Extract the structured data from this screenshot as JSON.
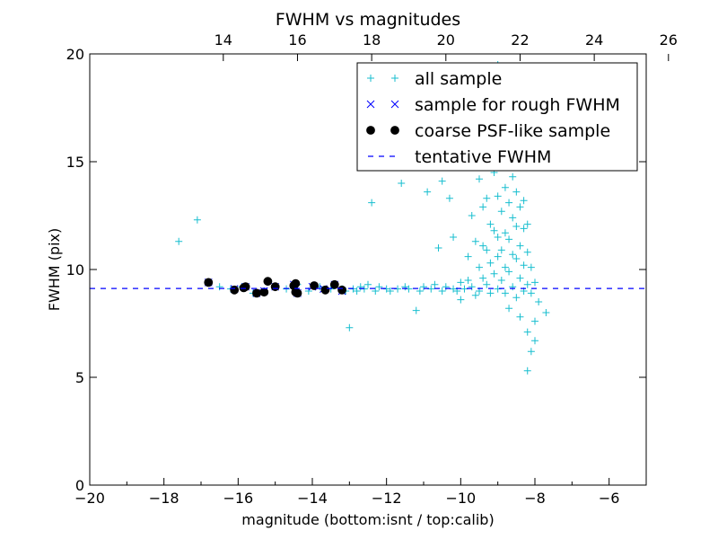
{
  "chart_data": {
    "type": "scatter",
    "title": "FWHM vs magnitudes",
    "xlabel": "magnitude (bottom:isnt / top:calib)",
    "ylabel": "FWHM (pix)",
    "xlim": [
      -20,
      -5
    ],
    "ylim": [
      0,
      20
    ],
    "x_ticks": [
      -20,
      -18,
      -16,
      -14,
      -12,
      -10,
      -8,
      -6
    ],
    "x_tick_labels": [
      "−20",
      "−18",
      "−16",
      "−14",
      "−12",
      "−10",
      "−8",
      "−6"
    ],
    "y_ticks": [
      0,
      5,
      10,
      15,
      20
    ],
    "y_tick_labels": [
      "0",
      "5",
      "10",
      "15",
      "20"
    ],
    "top_axis": {
      "offset": 30.4,
      "ticks": [
        14,
        16,
        18,
        20,
        22,
        24,
        26
      ],
      "tick_labels": [
        "14",
        "16",
        "18",
        "20",
        "22",
        "24",
        "26"
      ]
    },
    "grid": false,
    "legend_position": "top-right",
    "series": [
      {
        "name": "all sample",
        "marker": "plus",
        "color": "#17becf",
        "points": [
          [
            -17.6,
            11.3
          ],
          [
            -17.1,
            12.3
          ],
          [
            -16.8,
            9.4
          ],
          [
            -16.5,
            9.2
          ],
          [
            -16.2,
            9.1
          ],
          [
            -15.9,
            9.2
          ],
          [
            -15.6,
            8.9
          ],
          [
            -15.3,
            9.0
          ],
          [
            -15.0,
            9.2
          ],
          [
            -14.7,
            9.1
          ],
          [
            -14.4,
            9.3
          ],
          [
            -14.1,
            9.0
          ],
          [
            -13.8,
            9.2
          ],
          [
            -13.5,
            9.1
          ],
          [
            -13.2,
            9.1
          ],
          [
            -13.1,
            9.0
          ],
          [
            -13.0,
            7.3
          ],
          [
            -12.9,
            9.1
          ],
          [
            -12.8,
            9.0
          ],
          [
            -12.7,
            9.2
          ],
          [
            -12.6,
            9.1
          ],
          [
            -12.5,
            9.3
          ],
          [
            -12.4,
            13.1
          ],
          [
            -12.3,
            9.0
          ],
          [
            -12.2,
            9.2
          ],
          [
            -12.0,
            9.1
          ],
          [
            -11.9,
            9.0
          ],
          [
            -11.7,
            9.1
          ],
          [
            -11.6,
            14.0
          ],
          [
            -11.5,
            9.2
          ],
          [
            -11.4,
            9.1
          ],
          [
            -11.2,
            8.1
          ],
          [
            -11.1,
            9.0
          ],
          [
            -11.0,
            9.2
          ],
          [
            -10.9,
            13.6
          ],
          [
            -10.8,
            9.1
          ],
          [
            -10.7,
            9.3
          ],
          [
            -10.6,
            11.0
          ],
          [
            -10.5,
            14.1
          ],
          [
            -10.5,
            9.0
          ],
          [
            -10.4,
            9.2
          ],
          [
            -10.3,
            13.3
          ],
          [
            -10.2,
            11.5
          ],
          [
            -10.2,
            9.1
          ],
          [
            -10.1,
            9.0
          ],
          [
            -10.0,
            9.4
          ],
          [
            -10.0,
            8.6
          ],
          [
            -9.9,
            9.1
          ],
          [
            -9.9,
            16.2
          ],
          [
            -9.8,
            10.6
          ],
          [
            -9.8,
            9.5
          ],
          [
            -9.7,
            12.5
          ],
          [
            -9.7,
            9.2
          ],
          [
            -9.6,
            11.3
          ],
          [
            -9.6,
            8.8
          ],
          [
            -9.5,
            14.2
          ],
          [
            -9.5,
            10.1
          ],
          [
            -9.5,
            9.0
          ],
          [
            -9.4,
            12.9
          ],
          [
            -9.4,
            11.1
          ],
          [
            -9.4,
            9.6
          ],
          [
            -9.3,
            15.4
          ],
          [
            -9.3,
            13.3
          ],
          [
            -9.3,
            10.9
          ],
          [
            -9.3,
            9.3
          ],
          [
            -9.2,
            17.0
          ],
          [
            -9.2,
            12.1
          ],
          [
            -9.2,
            10.3
          ],
          [
            -9.2,
            8.9
          ],
          [
            -9.1,
            14.5
          ],
          [
            -9.1,
            11.8
          ],
          [
            -9.1,
            9.8
          ],
          [
            -9.0,
            19.5
          ],
          [
            -9.0,
            13.4
          ],
          [
            -9.0,
            11.5
          ],
          [
            -9.0,
            10.6
          ],
          [
            -9.0,
            9.1
          ],
          [
            -8.9,
            16.5
          ],
          [
            -8.9,
            14.9
          ],
          [
            -8.9,
            12.7
          ],
          [
            -8.9,
            10.9
          ],
          [
            -8.9,
            9.5
          ],
          [
            -8.8,
            18.2
          ],
          [
            -8.8,
            13.8
          ],
          [
            -8.8,
            11.7
          ],
          [
            -8.8,
            10.1
          ],
          [
            -8.8,
            8.9
          ],
          [
            -8.7,
            15.6
          ],
          [
            -8.7,
            13.1
          ],
          [
            -8.7,
            11.4
          ],
          [
            -8.7,
            9.9
          ],
          [
            -8.7,
            8.2
          ],
          [
            -8.6,
            17.4
          ],
          [
            -8.6,
            14.3
          ],
          [
            -8.6,
            12.4
          ],
          [
            -8.6,
            10.7
          ],
          [
            -8.6,
            9.2
          ],
          [
            -8.5,
            16.1
          ],
          [
            -8.5,
            13.6
          ],
          [
            -8.5,
            12.0
          ],
          [
            -8.5,
            10.5
          ],
          [
            -8.5,
            8.7
          ],
          [
            -8.4,
            14.8
          ],
          [
            -8.4,
            12.9
          ],
          [
            -8.4,
            11.1
          ],
          [
            -8.4,
            9.6
          ],
          [
            -8.4,
            7.8
          ],
          [
            -8.3,
            13.2
          ],
          [
            -8.3,
            11.9
          ],
          [
            -8.3,
            10.2
          ],
          [
            -8.3,
            9.0
          ],
          [
            -8.2,
            12.1
          ],
          [
            -8.2,
            10.8
          ],
          [
            -8.2,
            9.3
          ],
          [
            -8.2,
            7.1
          ],
          [
            -8.2,
            5.3
          ],
          [
            -8.1,
            10.1
          ],
          [
            -8.1,
            8.9
          ],
          [
            -8.1,
            6.2
          ],
          [
            -8.0,
            9.4
          ],
          [
            -8.0,
            7.6
          ],
          [
            -8.0,
            6.7
          ],
          [
            -7.9,
            8.5
          ],
          [
            -7.7,
            8.0
          ]
        ]
      },
      {
        "name": "sample for rough FWHM",
        "marker": "x",
        "color": "#0000ff",
        "points": [
          [
            -16.8,
            9.4
          ],
          [
            -16.1,
            9.1
          ],
          [
            -15.8,
            9.2
          ],
          [
            -15.5,
            8.9
          ],
          [
            -15.3,
            9.0
          ],
          [
            -15.0,
            9.2
          ],
          [
            -14.5,
            9.3
          ],
          [
            -14.4,
            8.9
          ],
          [
            -14.0,
            9.2
          ],
          [
            -13.7,
            9.1
          ],
          [
            -13.4,
            9.3
          ],
          [
            -13.2,
            9.0
          ]
        ]
      },
      {
        "name": "coarse PSF-like sample",
        "marker": "dot",
        "color": "#000000",
        "points": [
          [
            -16.8,
            9.4
          ],
          [
            -16.1,
            9.05
          ],
          [
            -15.85,
            9.15
          ],
          [
            -15.8,
            9.2
          ],
          [
            -15.5,
            8.9
          ],
          [
            -15.3,
            8.95
          ],
          [
            -15.2,
            9.45
          ],
          [
            -15.0,
            9.2
          ],
          [
            -14.5,
            9.25
          ],
          [
            -14.45,
            9.35
          ],
          [
            -14.45,
            8.95
          ],
          [
            -14.4,
            8.9
          ],
          [
            -13.95,
            9.25
          ],
          [
            -13.65,
            9.05
          ],
          [
            -13.4,
            9.3
          ],
          [
            -13.2,
            9.05
          ]
        ]
      },
      {
        "name": "tentative FWHM",
        "style": "dashed-line",
        "color": "#0000ff",
        "y": 9.12
      }
    ]
  }
}
